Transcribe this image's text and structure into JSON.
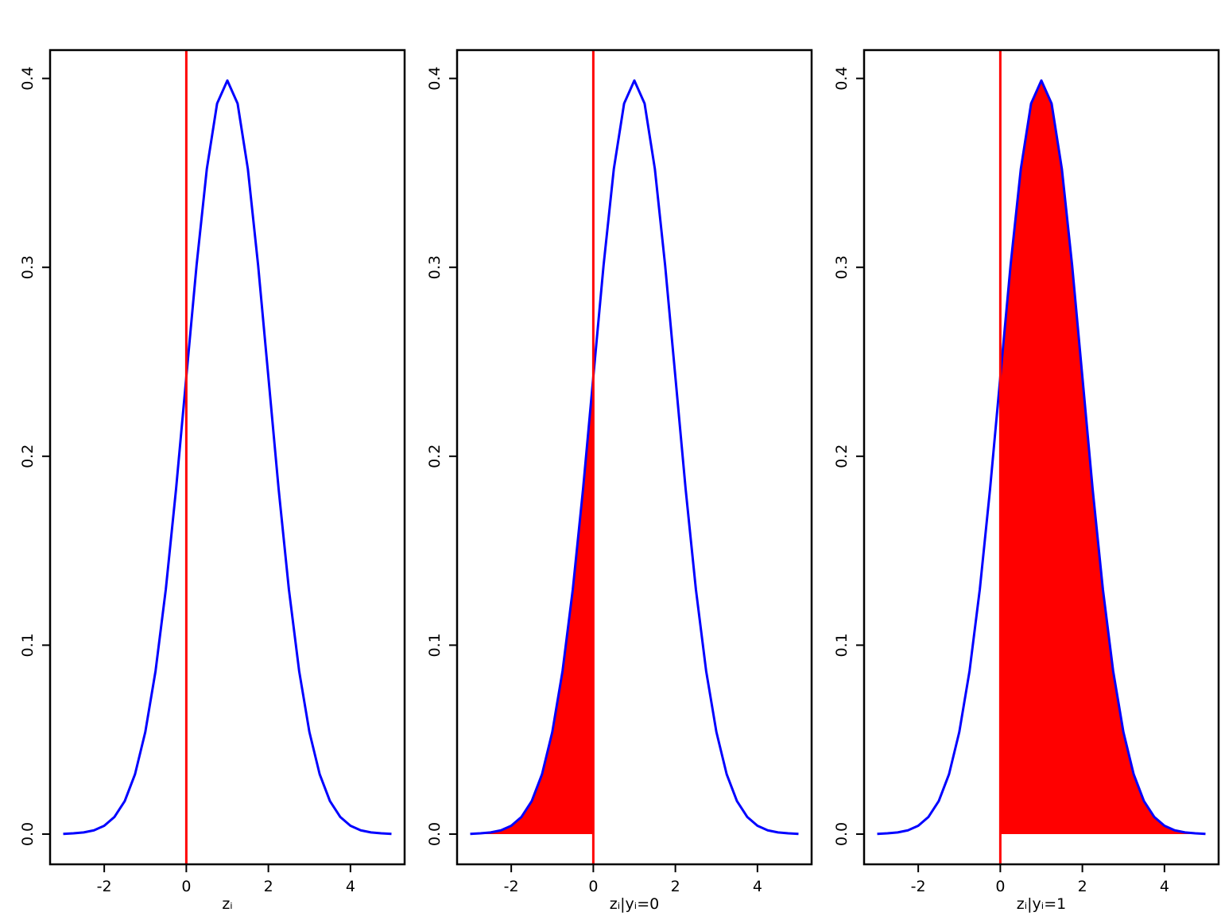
{
  "chart_data": [
    {
      "type": "line",
      "xlabel": "zᵢ",
      "threshold": 0,
      "threshold_color": "#ff0000",
      "shade": null,
      "shade_color": "#ff0000",
      "x": [
        -3,
        -2.75,
        -2.5,
        -2.25,
        -2,
        -1.75,
        -1.5,
        -1.25,
        -1,
        -0.75,
        -0.5,
        -0.25,
        0,
        0.25,
        0.5,
        0.75,
        1,
        1.25,
        1.5,
        1.75,
        2,
        2.25,
        2.5,
        2.75,
        3,
        3.25,
        3.5,
        3.75,
        4,
        4.25,
        4.5,
        4.75,
        5
      ],
      "series": [
        {
          "color": "#0000ff",
          "values": [
            0.0001,
            0.0004,
            0.0009,
            0.002,
            0.0044,
            0.0091,
            0.0175,
            0.0317,
            0.054,
            0.0863,
            0.1295,
            0.1826,
            0.242,
            0.3011,
            0.3521,
            0.3867,
            0.3989,
            0.3867,
            0.3521,
            0.3011,
            0.242,
            0.1826,
            0.1295,
            0.0863,
            0.054,
            0.0317,
            0.0175,
            0.0091,
            0.0044,
            0.002,
            0.0009,
            0.0004,
            0.0001
          ]
        }
      ],
      "xlim": [
        -3.32,
        5.32
      ],
      "xticks": [
        -2,
        0,
        2,
        4
      ],
      "ylim": [
        -0.016,
        0.415
      ],
      "yticks": [
        {
          "value": 0,
          "label": "0.0"
        },
        {
          "value": 0.1,
          "label": "0.1"
        },
        {
          "value": 0.2,
          "label": "0.2"
        },
        {
          "value": 0.3,
          "label": "0.3"
        },
        {
          "value": 0.4,
          "label": "0.4"
        }
      ]
    },
    {
      "type": "line",
      "xlabel": "zᵢ|yᵢ=0",
      "threshold": 0,
      "threshold_color": "#ff0000",
      "shade": "below",
      "shade_color": "#ff0000",
      "x": [
        -3,
        -2.75,
        -2.5,
        -2.25,
        -2,
        -1.75,
        -1.5,
        -1.25,
        -1,
        -0.75,
        -0.5,
        -0.25,
        0,
        0.25,
        0.5,
        0.75,
        1,
        1.25,
        1.5,
        1.75,
        2,
        2.25,
        2.5,
        2.75,
        3,
        3.25,
        3.5,
        3.75,
        4,
        4.25,
        4.5,
        4.75,
        5
      ],
      "series": [
        {
          "color": "#0000ff",
          "values": [
            0.0001,
            0.0004,
            0.0009,
            0.002,
            0.0044,
            0.0091,
            0.0175,
            0.0317,
            0.054,
            0.0863,
            0.1295,
            0.1826,
            0.242,
            0.3011,
            0.3521,
            0.3867,
            0.3989,
            0.3867,
            0.3521,
            0.3011,
            0.242,
            0.1826,
            0.1295,
            0.0863,
            0.054,
            0.0317,
            0.0175,
            0.0091,
            0.0044,
            0.002,
            0.0009,
            0.0004,
            0.0001
          ]
        }
      ],
      "xlim": [
        -3.32,
        5.32
      ],
      "xticks": [
        -2,
        0,
        2,
        4
      ],
      "ylim": [
        -0.016,
        0.415
      ],
      "yticks": [
        {
          "value": 0,
          "label": "0.0"
        },
        {
          "value": 0.1,
          "label": "0.1"
        },
        {
          "value": 0.2,
          "label": "0.2"
        },
        {
          "value": 0.3,
          "label": "0.3"
        },
        {
          "value": 0.4,
          "label": "0.4"
        }
      ]
    },
    {
      "type": "line",
      "xlabel": "zᵢ|yᵢ=1",
      "threshold": 0,
      "threshold_color": "#ff0000",
      "shade": "above",
      "shade_color": "#ff0000",
      "x": [
        -3,
        -2.75,
        -2.5,
        -2.25,
        -2,
        -1.75,
        -1.5,
        -1.25,
        -1,
        -0.75,
        -0.5,
        -0.25,
        0,
        0.25,
        0.5,
        0.75,
        1,
        1.25,
        1.5,
        1.75,
        2,
        2.25,
        2.5,
        2.75,
        3,
        3.25,
        3.5,
        3.75,
        4,
        4.25,
        4.5,
        4.75,
        5
      ],
      "series": [
        {
          "color": "#0000ff",
          "values": [
            0.0001,
            0.0004,
            0.0009,
            0.002,
            0.0044,
            0.0091,
            0.0175,
            0.0317,
            0.054,
            0.0863,
            0.1295,
            0.1826,
            0.242,
            0.3011,
            0.3521,
            0.3867,
            0.3989,
            0.3867,
            0.3521,
            0.3011,
            0.242,
            0.1826,
            0.1295,
            0.0863,
            0.054,
            0.0317,
            0.0175,
            0.0091,
            0.0044,
            0.002,
            0.0009,
            0.0004,
            0.0001
          ]
        }
      ],
      "xlim": [
        -3.32,
        5.32
      ],
      "xticks": [
        -2,
        0,
        2,
        4
      ],
      "ylim": [
        -0.016,
        0.415
      ],
      "yticks": [
        {
          "value": 0,
          "label": "0.0"
        },
        {
          "value": 0.1,
          "label": "0.1"
        },
        {
          "value": 0.2,
          "label": "0.2"
        },
        {
          "value": 0.3,
          "label": "0.3"
        },
        {
          "value": 0.4,
          "label": "0.4"
        }
      ]
    }
  ]
}
